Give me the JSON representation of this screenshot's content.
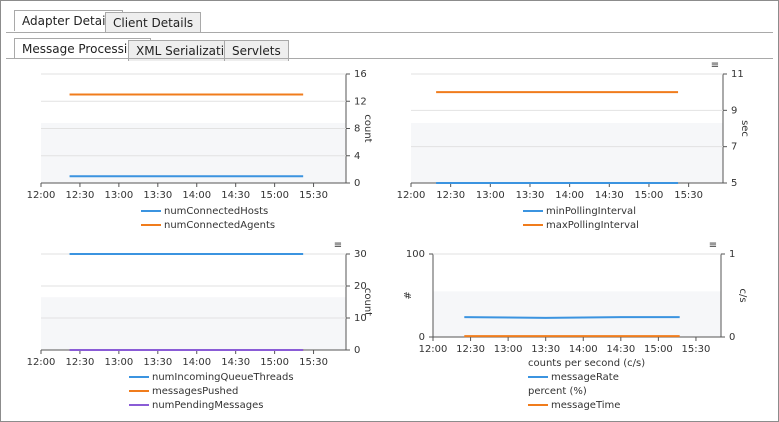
{
  "tabs": [
    "Adapter Details",
    "Client Details"
  ],
  "subtabs": [
    "Message Processing",
    "XML Serialization",
    "Servlets"
  ],
  "chart_data": [
    {
      "type": "line",
      "x": [
        "12:22",
        "15:22"
      ],
      "xlim": [
        "12:00",
        "15:55"
      ],
      "xticks": [
        "12:00",
        "12:30",
        "13:00",
        "13:30",
        "14:00",
        "14:30",
        "15:00",
        "15:30"
      ],
      "ylim": [
        0,
        16
      ],
      "yticks": [
        0,
        4,
        8,
        12,
        16
      ],
      "ylabel": "count",
      "grid": true,
      "series": [
        {
          "name": "numConnectedHosts",
          "color": "#3b94e0",
          "values": [
            1,
            1
          ]
        },
        {
          "name": "numConnectedAgents",
          "color": "#f07c1c",
          "values": [
            13,
            13
          ]
        }
      ]
    },
    {
      "type": "line",
      "x": [
        "12:19",
        "15:22"
      ],
      "xlim": [
        "12:00",
        "15:56"
      ],
      "xticks": [
        "12:00",
        "12:30",
        "13:00",
        "13:30",
        "14:00",
        "14:30",
        "15:00",
        "15:30"
      ],
      "ylim": [
        5,
        11
      ],
      "yticks": [
        5,
        7,
        9,
        11
      ],
      "ylabel": "sec",
      "grid": true,
      "series": [
        {
          "name": "minPollingInterval",
          "color": "#3b94e0",
          "values": [
            5,
            5
          ]
        },
        {
          "name": "maxPollingInterval",
          "color": "#f07c1c",
          "values": [
            10,
            10
          ]
        }
      ]
    },
    {
      "type": "line",
      "x": [
        "12:22",
        "15:22"
      ],
      "xlim": [
        "12:00",
        "15:55"
      ],
      "xticks": [
        "12:00",
        "12:30",
        "13:00",
        "13:30",
        "14:00",
        "14:30",
        "15:00",
        "15:30"
      ],
      "ylim": [
        0,
        30
      ],
      "yticks": [
        0,
        10,
        20,
        30
      ],
      "ylabel": "count",
      "grid": true,
      "series": [
        {
          "name": "numIncomingQueueThreads",
          "color": "#3b94e0",
          "values": [
            30,
            30
          ]
        },
        {
          "name": "messagesPushed",
          "color": "#f07c1c",
          "values": [
            0,
            0
          ]
        },
        {
          "name": "numPendingMessages",
          "color": "#8a5cd6",
          "values": [
            0,
            0
          ]
        }
      ]
    },
    {
      "type": "line",
      "x": [
        "12:25",
        "13:30",
        "14:30",
        "15:17"
      ],
      "xlim": [
        "12:00",
        "15:50"
      ],
      "xticks": [
        "12:00",
        "12:30",
        "13:00",
        "13:30",
        "14:00",
        "14:30",
        "15:00",
        "15:30"
      ],
      "ylim": [
        0,
        100
      ],
      "yticks": [
        0,
        100
      ],
      "ylabel": "#",
      "y2lim": [
        0,
        1
      ],
      "y2ticks": [
        0,
        1
      ],
      "y2label": "c/s",
      "grid": true,
      "series": [
        {
          "name": "messageRate",
          "unit": "counts per second (c/s)",
          "axis": "y2",
          "color": "#3b94e0",
          "values": [
            0.24,
            0.23,
            0.24,
            0.24
          ]
        },
        {
          "name": "messageTime",
          "unit": "percent (%)",
          "color": "#f07c1c",
          "values": [
            1,
            1,
            1,
            1
          ]
        }
      ]
    }
  ]
}
